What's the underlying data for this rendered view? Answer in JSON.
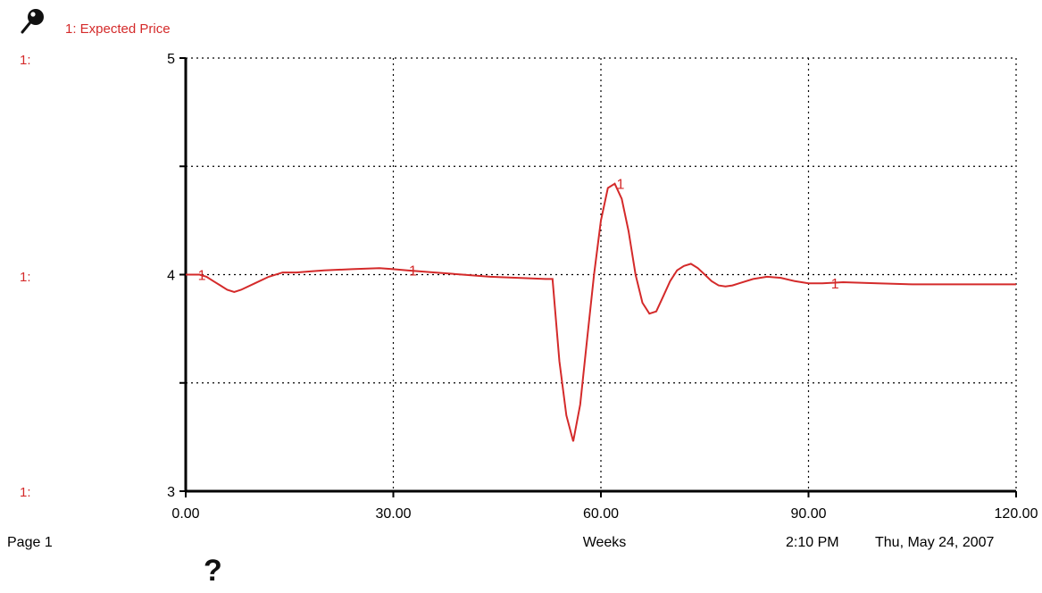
{
  "header": {
    "pin_icon": "pushpin-icon",
    "series_title": "1: Expected Price"
  },
  "axis_prefix": "1:",
  "footer": {
    "page": "Page 1",
    "xlabel": "Weeks",
    "time": "2:10 PM",
    "date": "Thu, May 24, 2007"
  },
  "help": {
    "label": "?",
    "icon": "question-icon"
  },
  "colors": {
    "series": "#d42a2a",
    "axis": "#000000",
    "grid": "#000000"
  },
  "chart_data": {
    "type": "line",
    "title": "",
    "xlabel": "Weeks",
    "ylabel": "",
    "xlim": [
      0,
      120
    ],
    "ylim": [
      3,
      5
    ],
    "x_ticks": [
      0,
      30,
      60,
      90,
      120
    ],
    "x_tick_labels": [
      "0.00",
      "30.00",
      "60.00",
      "90.00",
      "120.00"
    ],
    "y_ticks": [
      3,
      3.5,
      4,
      4.5,
      5
    ],
    "y_tick_labels": [
      "3",
      "",
      "4",
      "",
      "5"
    ],
    "grid": true,
    "series": [
      {
        "name": "1: Expected Price",
        "marker_label": "1",
        "marker_x": [
          1.5,
          32,
          62,
          93
        ],
        "x": [
          0,
          1,
          2,
          3,
          4,
          5,
          6,
          7,
          8,
          10,
          12,
          14,
          16,
          18,
          20,
          24,
          28,
          30,
          32,
          36,
          40,
          44,
          48,
          52,
          53,
          54,
          55,
          56,
          57,
          58,
          59,
          60,
          61,
          62,
          63,
          64,
          65,
          66,
          67,
          68,
          69,
          70,
          71,
          72,
          73,
          74,
          75,
          76,
          77,
          78,
          79,
          80,
          82,
          84,
          86,
          88,
          90,
          92,
          95,
          100,
          105,
          110,
          115,
          120
        ],
        "y": [
          4.0,
          4.0,
          4.0,
          3.99,
          3.97,
          3.95,
          3.93,
          3.92,
          3.93,
          3.96,
          3.99,
          4.01,
          4.01,
          4.015,
          4.02,
          4.025,
          4.03,
          4.025,
          4.02,
          4.01,
          4.0,
          3.99,
          3.985,
          3.98,
          3.98,
          3.6,
          3.35,
          3.23,
          3.4,
          3.7,
          4.0,
          4.25,
          4.4,
          4.42,
          4.35,
          4.2,
          4.0,
          3.87,
          3.82,
          3.83,
          3.9,
          3.97,
          4.02,
          4.04,
          4.05,
          4.03,
          4.0,
          3.97,
          3.95,
          3.945,
          3.95,
          3.96,
          3.98,
          3.99,
          3.985,
          3.97,
          3.96,
          3.96,
          3.965,
          3.96,
          3.955,
          3.955,
          3.955,
          3.955
        ]
      }
    ]
  }
}
